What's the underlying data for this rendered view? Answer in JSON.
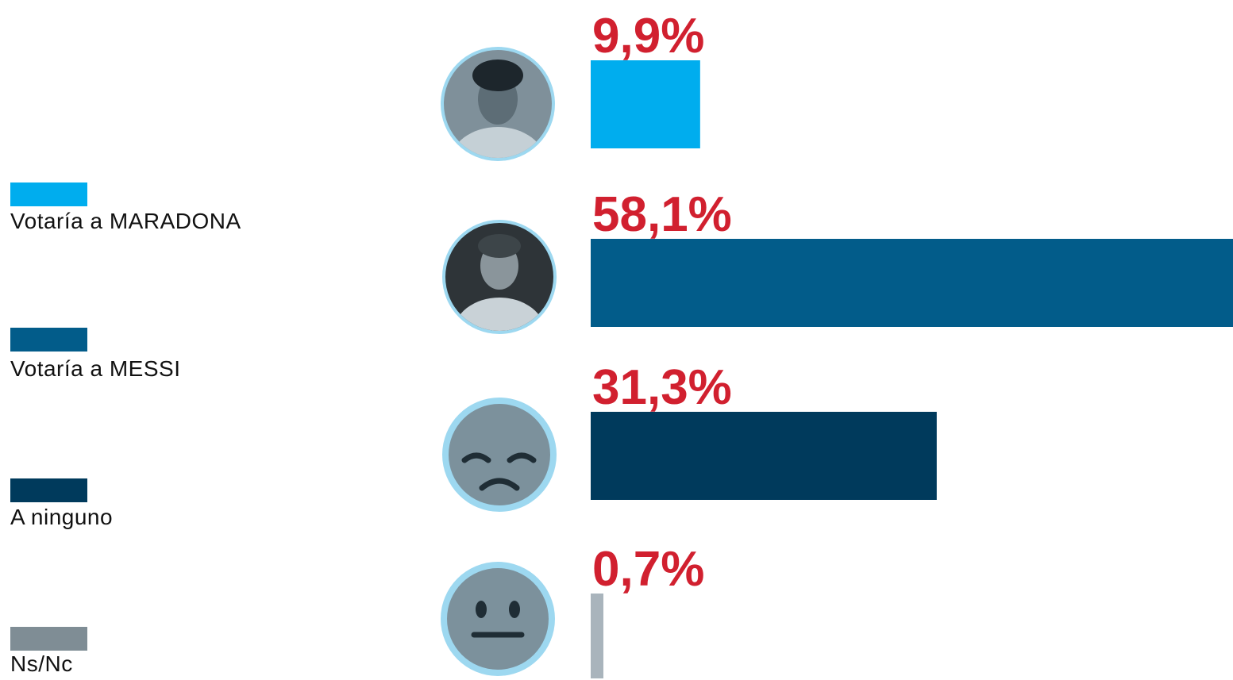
{
  "chart_data": {
    "type": "bar",
    "orientation": "horizontal",
    "categories": [
      "Votaría a MARADONA",
      "Votaría a MESSI",
      "A ninguno",
      "Ns/Nc"
    ],
    "values": [
      9.9,
      58.1,
      31.3,
      0.7
    ],
    "value_labels": [
      "9,9%",
      "58,1%",
      "31,3%",
      "0,7%"
    ],
    "colors": [
      "#00adee",
      "#025c8a",
      "#003a5c",
      "#a9b4bc"
    ],
    "legend_colors": [
      "#00adee",
      "#025c8a",
      "#003a5c",
      "#7f8d95"
    ]
  }
}
